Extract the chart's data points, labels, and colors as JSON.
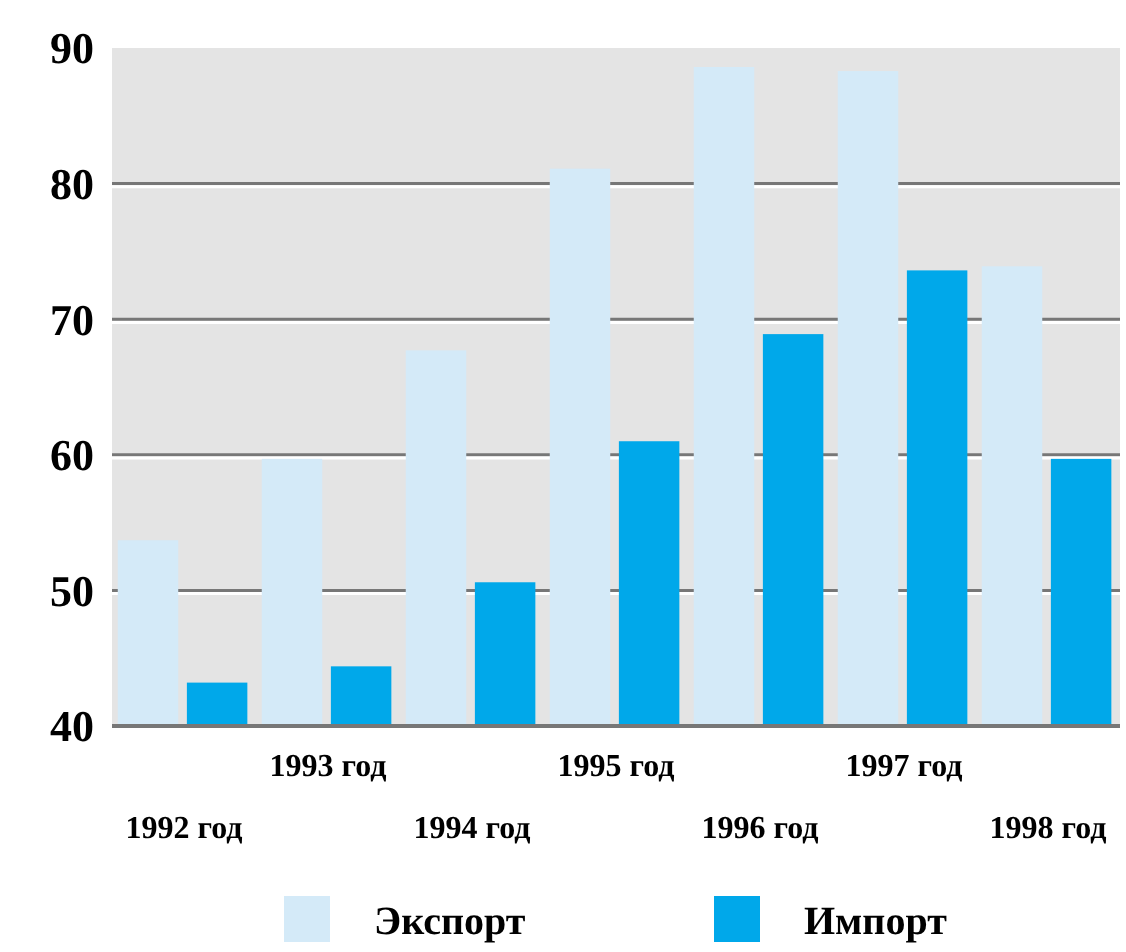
{
  "chart_data": {
    "type": "bar",
    "categories": [
      "1992 год",
      "1993 год",
      "1994 год",
      "1995 год",
      "1996 год",
      "1997 год",
      "1998 год"
    ],
    "series": [
      {
        "name": "Экспорт",
        "color": "#d4eaf8",
        "values": [
          53.7,
          59.7,
          67.7,
          81.1,
          88.6,
          88.3,
          73.9
        ]
      },
      {
        "name": "Импорт",
        "color": "#00a8ea",
        "values": [
          43.2,
          44.4,
          50.6,
          61.0,
          68.9,
          73.6,
          59.7
        ]
      }
    ],
    "ylim": [
      40,
      90
    ],
    "yticks": [
      40,
      50,
      60,
      70,
      80,
      90
    ],
    "grid": "y",
    "legend": "bottom"
  }
}
